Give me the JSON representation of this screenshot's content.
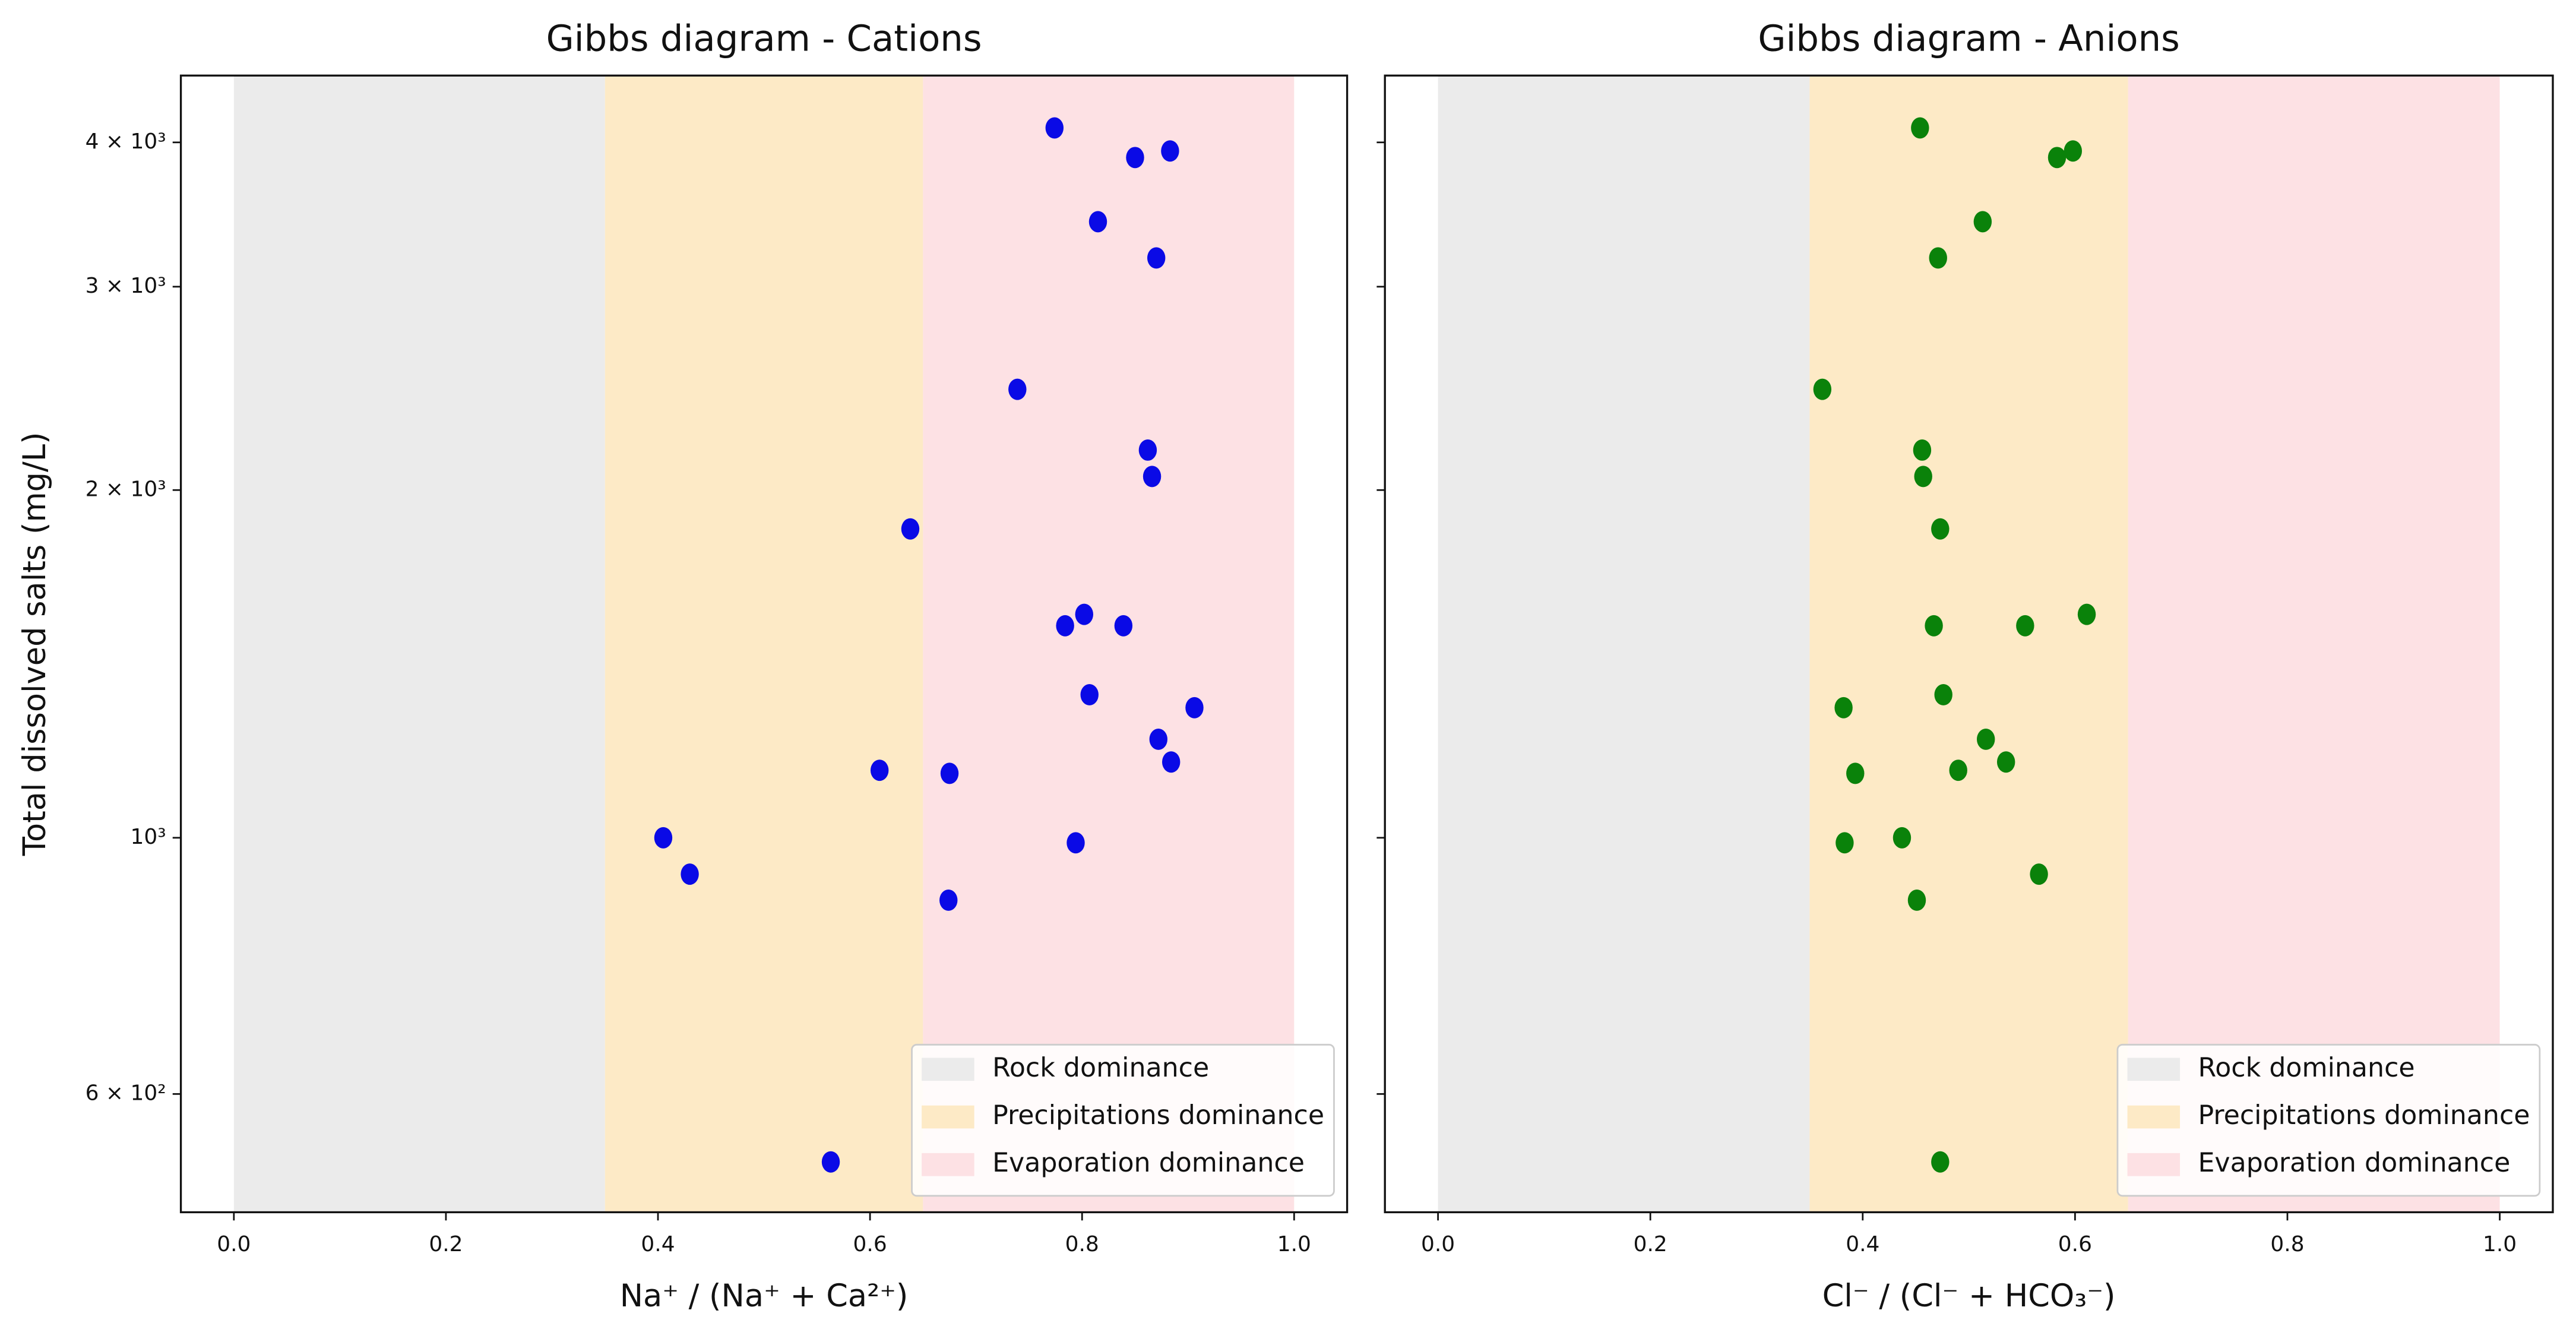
{
  "chart_data": [
    {
      "type": "scatter",
      "title": "Gibbs diagram  - Cations",
      "xlabel": "Na⁺ / (Na⁺ + Ca²⁺)",
      "ylabel": "Total dissolved salts (mg/L)",
      "yscale": "log",
      "color": "#0a0ae6",
      "xlim": [
        -0.05,
        1.05
      ],
      "ylim": [
        474,
        4570
      ],
      "xticks": [
        {
          "value": 0,
          "label": "0.0"
        },
        0.2,
        0.4,
        0.6,
        0.8,
        {
          "value": 1,
          "label": "1.0"
        }
      ],
      "yticks": [
        {
          "value": 600,
          "label": "6 × 10²"
        },
        {
          "value": 1000,
          "label": "10³"
        },
        {
          "value": 2000,
          "label": "2 × 10³"
        },
        {
          "value": 3000,
          "label": "3 × 10³"
        },
        {
          "value": 4000,
          "label": "4 × 10³"
        }
      ],
      "regions": [
        {
          "name": "Rock dominance",
          "range": [
            0,
            0.35
          ],
          "color": "#ebebeb"
        },
        {
          "name": "Precipitations dominance",
          "range": [
            0.35,
            0.65
          ],
          "color": "#fdeac6"
        },
        {
          "name": "Evaporation dominance",
          "range": [
            0.65,
            1
          ],
          "color": "#fde1e4"
        }
      ],
      "legend": "lower right",
      "x": [
        0.774,
        0.85,
        0.883,
        0.815,
        0.87,
        0.739,
        0.862,
        0.866,
        0.638,
        0.802,
        0.784,
        0.839,
        0.807,
        0.906,
        0.872,
        0.884,
        0.609,
        0.675,
        0.405,
        0.794,
        0.43,
        0.674,
        0.563
      ],
      "values": [
        4117,
        3881,
        3932,
        3415,
        3177,
        2445,
        2166,
        2055,
        1851,
        1561,
        1526,
        1526,
        1330,
        1296,
        1217,
        1163,
        1144,
        1137,
        1000,
        990,
        930,
        883,
        524
      ]
    },
    {
      "type": "scatter",
      "title": "Gibbs diagram - Anions",
      "xlabel": "Cl⁻ / (Cl⁻ + HCO₃⁻)",
      "yscale": "log",
      "color": "#0a820a",
      "xlim": [
        -0.05,
        1.05
      ],
      "ylim": [
        474,
        4570
      ],
      "xticks": [
        {
          "value": 0,
          "label": "0.0"
        },
        0.2,
        0.4,
        0.6,
        0.8,
        {
          "value": 1,
          "label": "1.0"
        }
      ],
      "regions": [
        {
          "name": "Rock dominance",
          "range": [
            0,
            0.35
          ],
          "color": "#ebebeb"
        },
        {
          "name": "Precipitations dominance",
          "range": [
            0.35,
            0.65
          ],
          "color": "#fdeac6"
        },
        {
          "name": "Evaporation dominance",
          "range": [
            0.65,
            1
          ],
          "color": "#fde1e4"
        }
      ],
      "legend": "lower right",
      "x": [
        0.454,
        0.583,
        0.598,
        0.513,
        0.471,
        0.362,
        0.456,
        0.457,
        0.473,
        0.611,
        0.467,
        0.553,
        0.476,
        0.382,
        0.516,
        0.535,
        0.393,
        0.49,
        0.437,
        0.383,
        0.566,
        0.451,
        0.473
      ],
      "values": [
        4117,
        3881,
        3932,
        3415,
        3177,
        2445,
        2166,
        2055,
        1851,
        1561,
        1526,
        1526,
        1330,
        1296,
        1217,
        1163,
        1137,
        1144,
        1000,
        990,
        930,
        883,
        524
      ]
    }
  ]
}
